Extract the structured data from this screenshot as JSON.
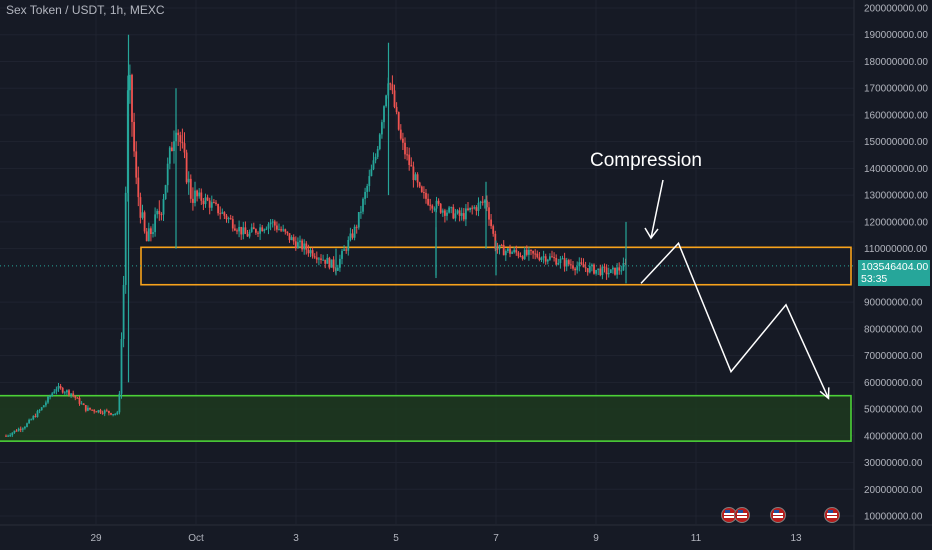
{
  "header": {
    "title": "Sex Token / USDT, 1h, MEXC"
  },
  "price_tag": {
    "price": "103546404.00",
    "countdown": "53:35"
  },
  "annotation": {
    "compression": "Compression"
  },
  "colors": {
    "up": "#26a69a",
    "down": "#ef5350",
    "background": "#161a25",
    "grid": "#1f2330",
    "axis_text": "#b2b5be",
    "orange_box": "#f7a21b",
    "green_box": "#4cd137",
    "green_fill": "#1d3a1f"
  },
  "events": {
    "icons": [
      "us-flag-icon",
      "us-flag-icon",
      "us-flag-icon",
      "us-flag-icon"
    ]
  },
  "chart_data": {
    "type": "candlestick",
    "ylim": [
      10000000,
      200000000
    ],
    "y_ticks": [
      {
        "value": 200000000,
        "label": "200000000.00"
      },
      {
        "value": 190000000,
        "label": "190000000.00"
      },
      {
        "value": 180000000,
        "label": "180000000.00"
      },
      {
        "value": 170000000,
        "label": "170000000.00"
      },
      {
        "value": 160000000,
        "label": "160000000.00"
      },
      {
        "value": 150000000,
        "label": "150000000.00"
      },
      {
        "value": 140000000,
        "label": "140000000.00"
      },
      {
        "value": 130000000,
        "label": "130000000.00"
      },
      {
        "value": 120000000,
        "label": "120000000.00"
      },
      {
        "value": 110000000,
        "label": "110000000.00"
      },
      {
        "value": 90000000,
        "label": "90000000.00"
      },
      {
        "value": 80000000,
        "label": "80000000.00"
      },
      {
        "value": 70000000,
        "label": "70000000.00"
      },
      {
        "value": 60000000,
        "label": "60000000.00"
      },
      {
        "value": 50000000,
        "label": "50000000.00"
      },
      {
        "value": 40000000,
        "label": "40000000.00"
      },
      {
        "value": 30000000,
        "label": "30000000.00"
      },
      {
        "value": 20000000,
        "label": "20000000.00"
      },
      {
        "value": 10000000,
        "label": "10000000.00"
      }
    ],
    "x_ticks": [
      {
        "day": 29,
        "label": "29"
      },
      {
        "day": 31,
        "label": "Oct"
      },
      {
        "day": 33,
        "label": "3"
      },
      {
        "day": 35,
        "label": "5"
      },
      {
        "day": 37,
        "label": "7"
      },
      {
        "day": 39,
        "label": "9"
      },
      {
        "day": 41,
        "label": "11"
      },
      {
        "day": 43,
        "label": "13"
      }
    ],
    "path": [
      {
        "day": 27.2,
        "price": 40000000
      },
      {
        "day": 27.6,
        "price": 44000000
      },
      {
        "day": 27.9,
        "price": 50000000
      },
      {
        "day": 28.2,
        "price": 58000000
      },
      {
        "day": 28.5,
        "price": 56000000
      },
      {
        "day": 28.8,
        "price": 50000000
      },
      {
        "day": 29.2,
        "price": 49000000
      },
      {
        "day": 29.45,
        "price": 48000000
      },
      {
        "day": 29.55,
        "price": 95000000
      },
      {
        "day": 29.65,
        "price": 178000000
      },
      {
        "day": 29.8,
        "price": 135000000
      },
      {
        "day": 30.0,
        "price": 112000000
      },
      {
        "day": 30.3,
        "price": 125000000
      },
      {
        "day": 30.6,
        "price": 158000000
      },
      {
        "day": 30.9,
        "price": 130000000
      },
      {
        "day": 31.2,
        "price": 128000000
      },
      {
        "day": 31.6,
        "price": 122000000
      },
      {
        "day": 32.0,
        "price": 115000000
      },
      {
        "day": 32.5,
        "price": 120000000
      },
      {
        "day": 33.0,
        "price": 112000000
      },
      {
        "day": 33.4,
        "price": 108000000
      },
      {
        "day": 33.8,
        "price": 103000000
      },
      {
        "day": 34.2,
        "price": 118000000
      },
      {
        "day": 34.6,
        "price": 145000000
      },
      {
        "day": 34.85,
        "price": 175000000
      },
      {
        "day": 35.1,
        "price": 150000000
      },
      {
        "day": 35.5,
        "price": 130000000
      },
      {
        "day": 35.9,
        "price": 125000000
      },
      {
        "day": 36.3,
        "price": 122000000
      },
      {
        "day": 36.8,
        "price": 128000000
      },
      {
        "day": 37.0,
        "price": 110000000
      },
      {
        "day": 37.5,
        "price": 108000000
      },
      {
        "day": 38.0,
        "price": 107000000
      },
      {
        "day": 38.5,
        "price": 104000000
      },
      {
        "day": 39.0,
        "price": 102000000
      },
      {
        "day": 39.3,
        "price": 101000000
      },
      {
        "day": 39.6,
        "price": 103500000
      }
    ],
    "spikes": [
      {
        "day": 29.65,
        "high": 190000000,
        "low": 60000000
      },
      {
        "day": 30.6,
        "high": 170000000,
        "low": 110000000
      },
      {
        "day": 34.85,
        "high": 187000000,
        "low": 130000000
      },
      {
        "day": 35.8,
        "high": 125000000,
        "low": 100000000
      },
      {
        "day": 36.8,
        "high": 135000000,
        "low": 110000000
      },
      {
        "day": 39.6,
        "high": 120000000,
        "low": 97000000
      },
      {
        "day": 37.0,
        "high": 113000000,
        "low": 100000000
      },
      {
        "day": 33.8,
        "high": 110000000,
        "low": 100000000
      },
      {
        "day": 35.8,
        "high": 118000000,
        "low": 99000000
      }
    ],
    "zones": [
      {
        "name": "resistance",
        "day_start": 29.9,
        "day_end": 44.1,
        "top": 110500000,
        "bottom": 96500000
      },
      {
        "name": "support",
        "day_start": 27.0,
        "day_end": 44.1,
        "top": 55000000,
        "bottom": 38000000
      }
    ],
    "projection": [
      {
        "day": 39.9,
        "price": 97000000
      },
      {
        "day": 40.65,
        "price": 112000000
      },
      {
        "day": 41.7,
        "price": 64000000
      },
      {
        "day": 42.8,
        "price": 89000000
      },
      {
        "day": 43.65,
        "price": 54000000
      }
    ],
    "last_price": 103546404
  }
}
